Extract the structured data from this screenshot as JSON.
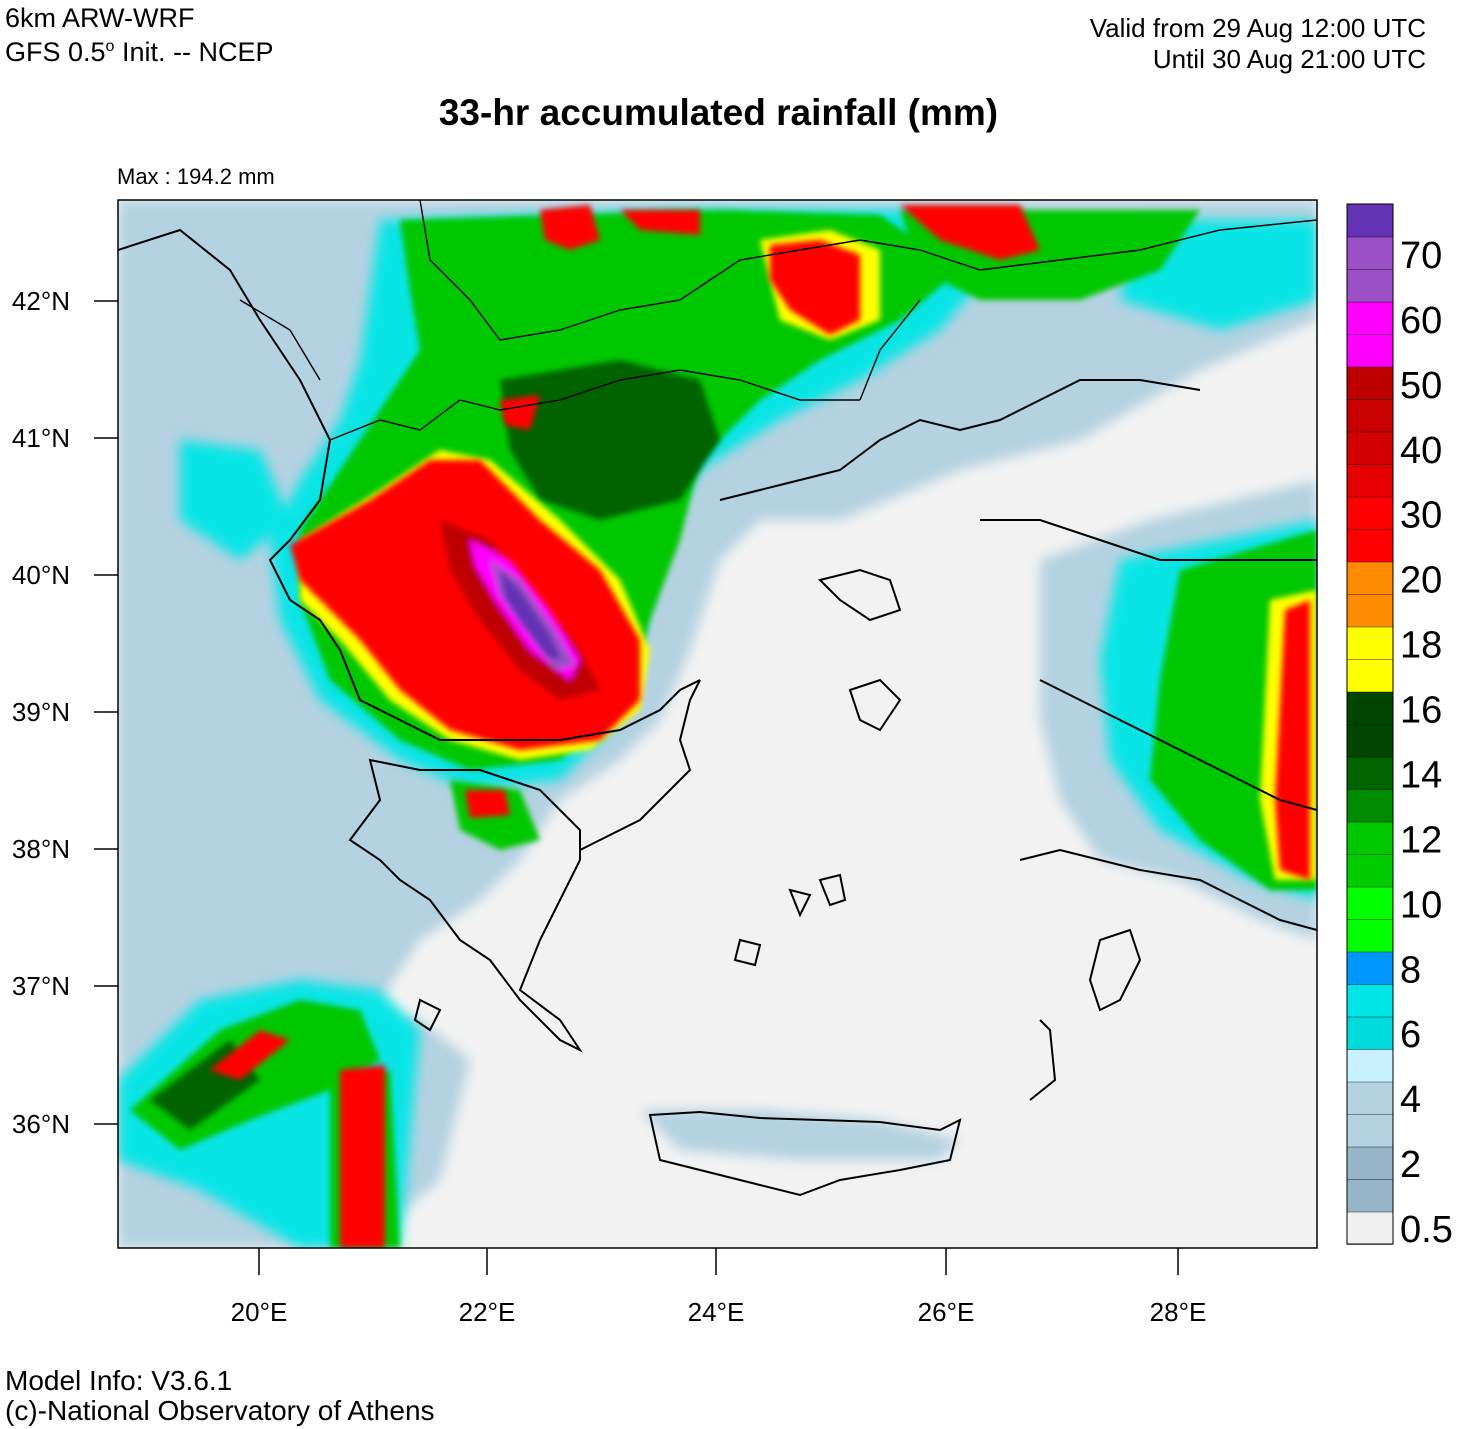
{
  "header": {
    "model_line1": "6km ARW-WRF",
    "model_line2_a": "GFS 0.5",
    "model_line2_sup": "o",
    "model_line2_b": " Init. -- NCEP",
    "valid_from": "Valid from 29 Aug 12:00 UTC",
    "valid_until": "Until 30 Aug 21:00 UTC",
    "title": "33-hr accumulated rainfall (mm)",
    "max_label": "Max : 194.2 mm"
  },
  "map": {
    "lat_labels": [
      "42°N",
      "41°N",
      "40°N",
      "39°N",
      "38°N",
      "37°N",
      "36°N"
    ],
    "lon_labels": [
      "20°E",
      "22°E",
      "24°E",
      "26°E",
      "28°E"
    ],
    "sea_color": "#f2f2f2",
    "coast_color": "#000000"
  },
  "colorbar": {
    "labels": [
      "70",
      "60",
      "50",
      "40",
      "30",
      "20",
      "18",
      "16",
      "14",
      "12",
      "10",
      "8",
      "6",
      "4",
      "2",
      "0.5"
    ],
    "colors": [
      "#f0f0f0",
      "#96b5c8",
      "#96b5c8",
      "#b4d2e1",
      "#b4d2e1",
      "#c8f0ff",
      "#00dcdc",
      "#00e6e6",
      "#0096ff",
      "#00ff00",
      "#00ff00",
      "#00cd00",
      "#00c800",
      "#008c00",
      "#006400",
      "#004600",
      "#004600",
      "#ffff00",
      "#ffff00",
      "#ff8c00",
      "#ff8c00",
      "#ff0000",
      "#ff0000",
      "#e60000",
      "#d20000",
      "#c80000",
      "#be0000",
      "#ff00ff",
      "#ff00ff",
      "#9b50c8",
      "#9b50c8",
      "#6432b4"
    ]
  },
  "footer": {
    "line1": "Model Info: V3.6.1",
    "line2": "(c)-National Observatory of Athens"
  }
}
